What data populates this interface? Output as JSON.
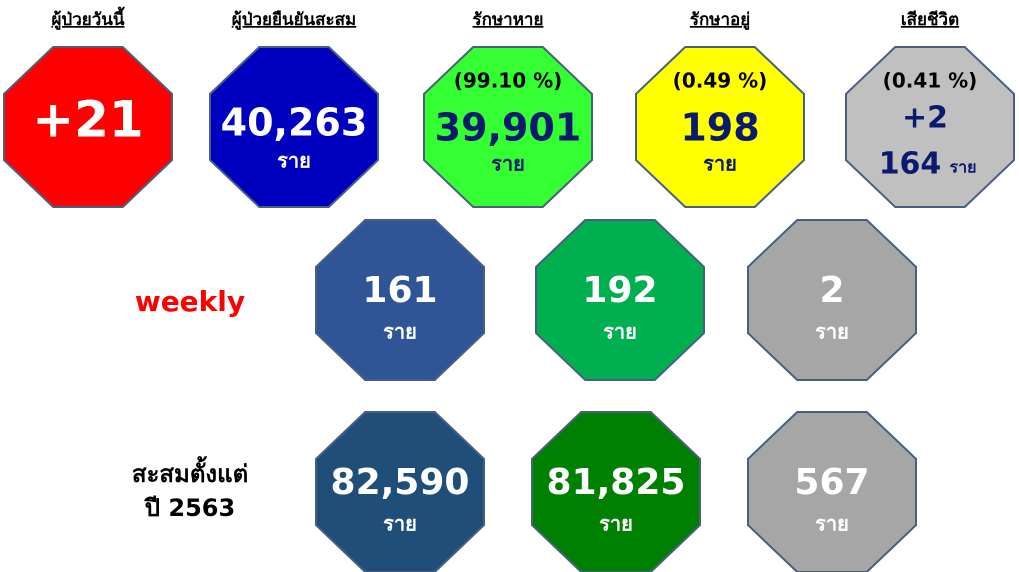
{
  "summary": [
    {
      "header": "ผู้ป่วยวันนี้",
      "value": "+21"
    },
    {
      "header": "ผู้ป่วยยืนยันสะสม",
      "value": "40,263",
      "unit": "ราย"
    },
    {
      "header": "รักษาหาย",
      "percent": "(99.10 %)",
      "value": "39,901",
      "unit": "ราย"
    },
    {
      "header": "รักษาอยู่",
      "percent": "(0.49 %)",
      "value": "198",
      "unit": "ราย"
    },
    {
      "header": "เสียชีวิต",
      "percent": "(0.41 %)",
      "change": "+2",
      "value": "164",
      "unit": "ราย"
    }
  ],
  "weekly": {
    "label": "weekly",
    "items": [
      {
        "value": "161",
        "unit": "ราย"
      },
      {
        "value": "192",
        "unit": "ราย"
      },
      {
        "value": "2",
        "unit": "ราย"
      }
    ]
  },
  "cumulative": {
    "label": [
      "สะสมตั้งแต่",
      "ปี 2563"
    ],
    "items": [
      {
        "value": "82,590",
        "unit": "ราย"
      },
      {
        "value": "81,825",
        "unit": "ราย"
      },
      {
        "value": "567",
        "unit": "ราย"
      }
    ]
  }
}
